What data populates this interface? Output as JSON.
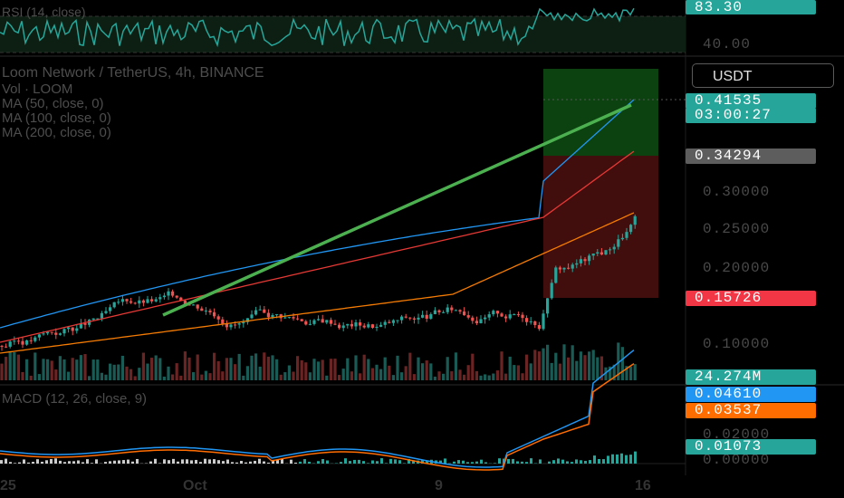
{
  "rsi_panel": {
    "title": "RSI (14, close)",
    "value_badge": "83.30",
    "axis_label": "40.00"
  },
  "main_panel": {
    "title_line": "Loom Network / TetherUS, 4h, BINANCE",
    "vol_line": "Vol · LOOM",
    "ma_lines": [
      "MA (50, close, 0)",
      "MA (100, close, 0)",
      "MA (200, close, 0)"
    ],
    "currency_button": "USDT",
    "price_badge": "0.41535",
    "countdown_badge": "03:00:27",
    "entry_badge": "0.34294",
    "stop_badge": "0.15726",
    "volume_badge": "24.274M",
    "y_axis": [
      "0.30000",
      "0.25000",
      "0.20000",
      "0.10000"
    ]
  },
  "macd_panel": {
    "title": "MACD (12, 26, close, 9)",
    "macd_badge": "0.04610",
    "signal_badge": "0.03537",
    "hist_badge": "0.01073",
    "y_axis": [
      "0.02000",
      "0.00000"
    ]
  },
  "x_axis": [
    "25",
    "Oct",
    "9",
    "16"
  ],
  "colors": {
    "up": "#26a69a",
    "down": "#ef5350",
    "ma50": "#2196f3",
    "ma100": "#e53935",
    "ma200": "#f57c00",
    "trendline": "#4caf50",
    "macd": "#2196f3",
    "signal": "#ff6d00"
  }
}
